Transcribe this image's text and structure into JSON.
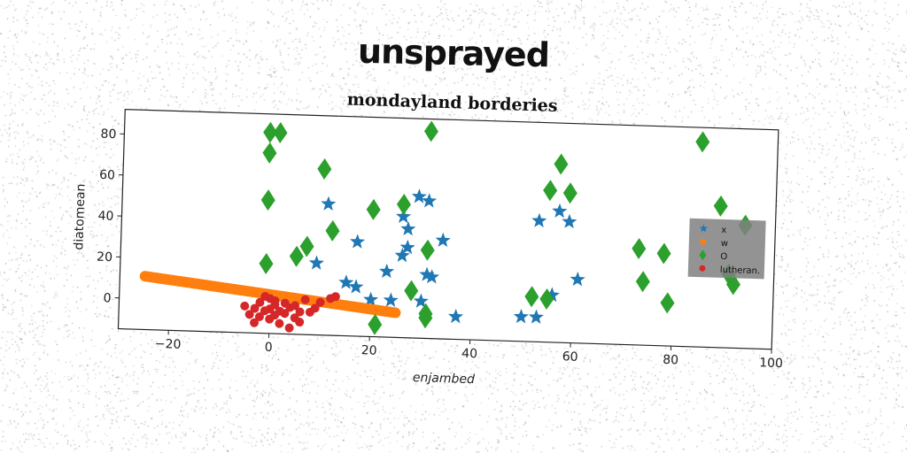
{
  "headline": "unsprayed",
  "chart_data": {
    "type": "scatter",
    "title": "mondayland borderies",
    "xlabel": "enjambed",
    "ylabel": "diatomean",
    "xlim": [
      -30,
      100
    ],
    "ylim": [
      -15,
      92
    ],
    "xticks": [
      -20,
      0,
      20,
      40,
      60,
      80,
      100
    ],
    "yticks": [
      0,
      20,
      40,
      60,
      80
    ],
    "grid": false,
    "legend_placement": "right",
    "series": [
      {
        "name": "x",
        "marker": "star",
        "color": "#1f77b4",
        "points": [
          [
            29,
            54
          ],
          [
            31,
            52
          ],
          [
            11,
            49
          ],
          [
            26,
            44
          ],
          [
            27,
            38
          ],
          [
            17,
            31
          ],
          [
            34,
            33
          ],
          [
            27,
            29
          ],
          [
            26,
            25
          ],
          [
            9,
            20
          ],
          [
            23,
            17
          ],
          [
            31,
            16
          ],
          [
            32,
            15
          ],
          [
            15,
            11
          ],
          [
            17,
            9
          ],
          [
            30,
            3
          ],
          [
            24,
            3
          ],
          [
            20,
            3
          ],
          [
            13,
            1
          ],
          [
            37,
            -4
          ],
          [
            50,
            -3
          ],
          [
            53,
            -3
          ],
          [
            53,
            44
          ],
          [
            57,
            49
          ],
          [
            59,
            44
          ],
          [
            61,
            16
          ],
          [
            56,
            8
          ],
          [
            56,
            8
          ]
        ]
      },
      {
        "name": "w",
        "marker": "circle",
        "color": "#ff7f0e",
        "line": {
          "x0": -25,
          "y0": 11,
          "x1": 25,
          "y1": -3
        }
      },
      {
        "name": "O",
        "marker": "diamond",
        "color": "#2ca02c",
        "points": [
          [
            -1,
            83
          ],
          [
            1,
            83
          ],
          [
            -1,
            73
          ],
          [
            31,
            86
          ],
          [
            10,
            66
          ],
          [
            57,
            72
          ],
          [
            -1,
            50
          ],
          [
            26,
            50
          ],
          [
            20,
            47
          ],
          [
            55,
            59
          ],
          [
            59,
            58
          ],
          [
            31,
            28
          ],
          [
            12,
            36
          ],
          [
            7,
            28
          ],
          [
            5,
            23
          ],
          [
            -1,
            19
          ],
          [
            28,
            8
          ],
          [
            31,
            -3
          ],
          [
            31,
            -5
          ],
          [
            21,
            -9
          ],
          [
            55,
            6
          ],
          [
            52,
            7
          ],
          [
            73,
            32
          ],
          [
            78,
            30
          ],
          [
            74,
            16
          ],
          [
            79,
            6
          ],
          [
            85,
            85
          ],
          [
            89,
            54
          ],
          [
            94,
            45
          ],
          [
            91,
            21
          ],
          [
            92,
            16
          ]
        ]
      },
      {
        "name": "lutheran.",
        "marker": "circle",
        "color": "#d62728",
        "points": [
          [
            -5,
            -2
          ],
          [
            -4,
            -6
          ],
          [
            -3,
            -10
          ],
          [
            -2,
            -7
          ],
          [
            -1,
            -4
          ],
          [
            0,
            -8
          ],
          [
            0,
            -3
          ],
          [
            1,
            -1
          ],
          [
            1,
            -6
          ],
          [
            2,
            -4
          ],
          [
            2,
            -10
          ],
          [
            3,
            0
          ],
          [
            3,
            -5
          ],
          [
            4,
            -2
          ],
          [
            5,
            -7
          ],
          [
            5,
            -1
          ],
          [
            6,
            -4
          ],
          [
            7,
            2
          ],
          [
            -2,
            0
          ],
          [
            -1,
            3
          ],
          [
            0,
            2
          ],
          [
            8,
            -4
          ],
          [
            9,
            -2
          ],
          [
            10,
            1
          ],
          [
            12,
            3
          ],
          [
            13,
            4
          ],
          [
            4,
            -12
          ],
          [
            -3,
            -3
          ],
          [
            1,
            1
          ],
          [
            6,
            -9
          ]
        ]
      }
    ]
  }
}
